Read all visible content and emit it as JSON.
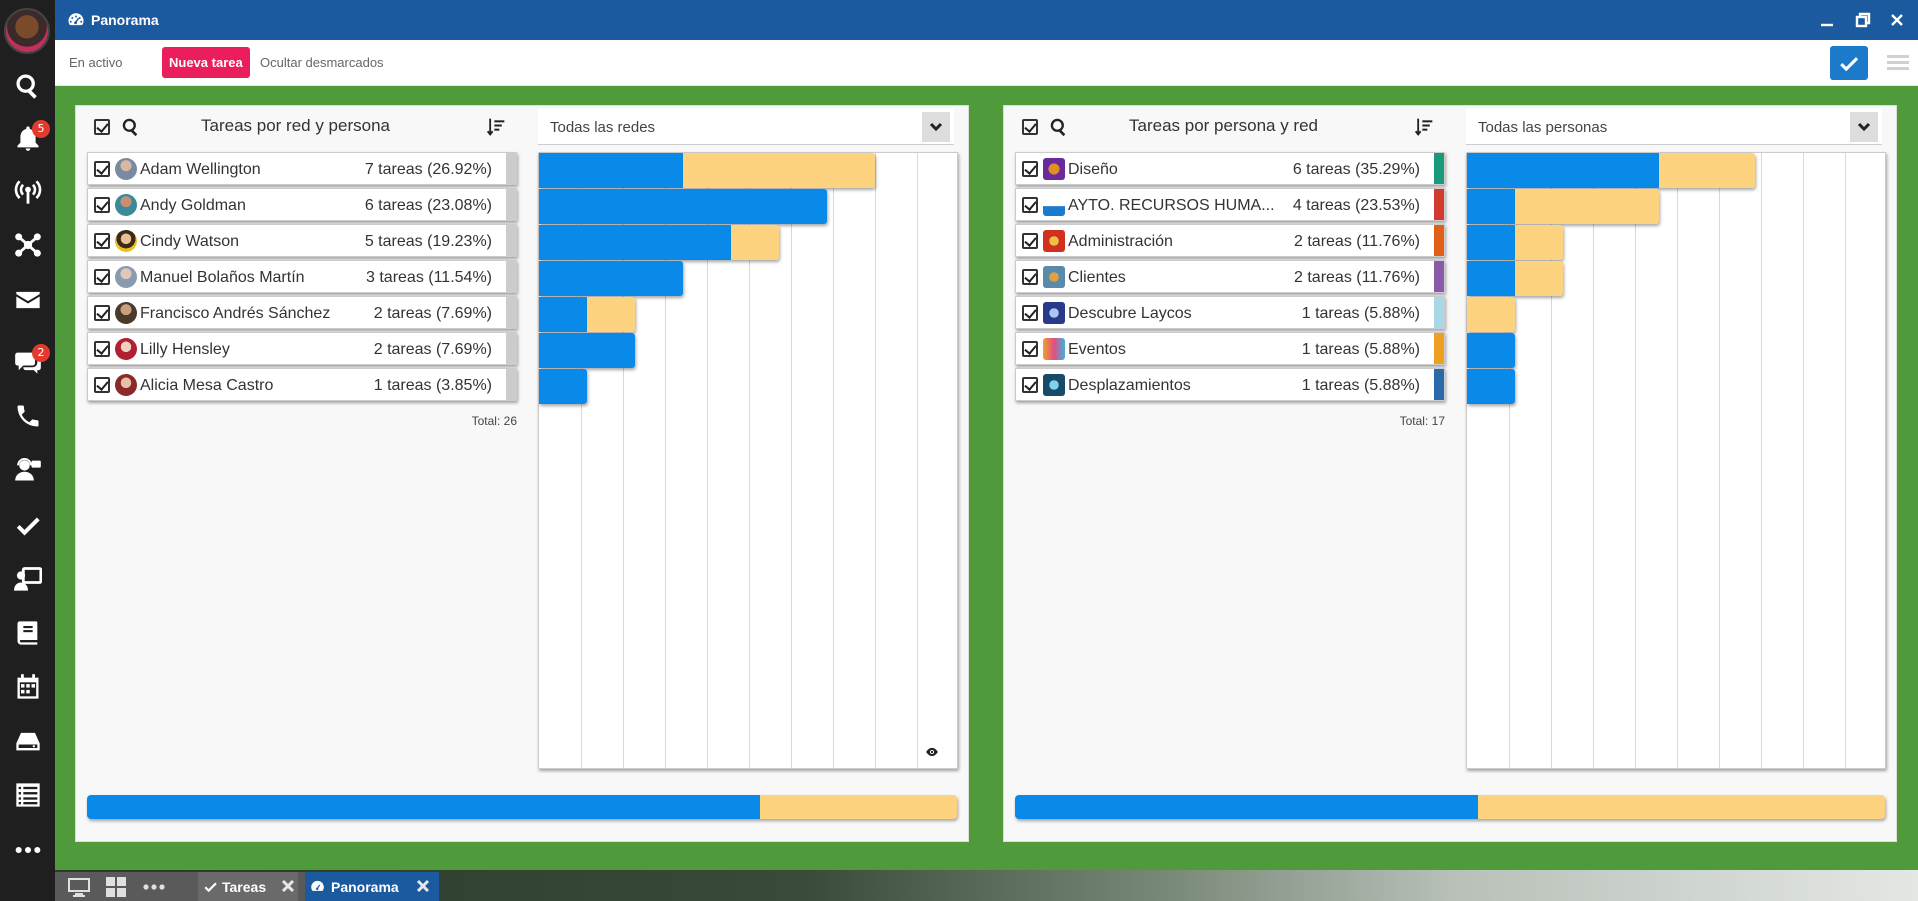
{
  "sidebar": {
    "badges": {
      "notifications": "5",
      "chat": "2"
    },
    "icons": [
      "search-icon",
      "bell-icon",
      "antenna-icon",
      "network-icon",
      "mail-icon",
      "chat-icon",
      "phone-icon",
      "support-icon",
      "check-icon",
      "presentation-icon",
      "book-icon",
      "calendar-icon",
      "drive-icon",
      "list-icon",
      "more-icon"
    ]
  },
  "window": {
    "title": "Panorama"
  },
  "toolbar": {
    "active_label": "En activo",
    "new_task_label": "Nueva tarea",
    "hide_label": "Ocultar desmarcados"
  },
  "colors": {
    "series_a": "#0a8ae8",
    "series_b": "#fdd380",
    "accent": "#ea1e5c",
    "titlebar": "#1c5aa0"
  },
  "left_panel": {
    "title": "Tareas por red y persona",
    "select_value": "Todas las redes",
    "total": "Total: 26",
    "rows": [
      {
        "name": "Adam Wellington",
        "count": "7 tareas (26.92%)",
        "a": 3,
        "b": 4
      },
      {
        "name": "Andy Goldman",
        "count": "6 tareas (23.08%)",
        "a": 6,
        "b": 0
      },
      {
        "name": "Cindy Watson",
        "count": "5 tareas (19.23%)",
        "a": 4,
        "b": 1
      },
      {
        "name": "Manuel Bolaños Martín",
        "count": "3 tareas (11.54%)",
        "a": 3,
        "b": 0
      },
      {
        "name": "Francisco Andrés Sánchez",
        "count": "2 tareas (7.69%)",
        "a": 1,
        "b": 1
      },
      {
        "name": "Lilly Hensley",
        "count": "2 tareas (7.69%)",
        "a": 2,
        "b": 0
      },
      {
        "name": "Alicia Mesa Castro",
        "count": "1 tareas (3.85%)",
        "a": 1,
        "b": 0
      }
    ],
    "progress": {
      "a": 0.774,
      "b": 0.226
    }
  },
  "right_panel": {
    "title": "Tareas por persona y red",
    "select_value": "Todas las personas",
    "total": "Total: 17",
    "rows": [
      {
        "name": "Diseño",
        "count": "6 tareas (35.29%)",
        "strip": "#1a9a7a",
        "a": 4,
        "b": 2
      },
      {
        "name": "AYTO. RECURSOS HUMA...",
        "count": "4 tareas (23.53%)",
        "strip": "#d23a30",
        "a": 1,
        "b": 3
      },
      {
        "name": "Administración",
        "count": "2 tareas (11.76%)",
        "strip": "#e0601a",
        "a": 1,
        "b": 1
      },
      {
        "name": "Clientes",
        "count": "2 tareas (11.76%)",
        "strip": "#8a5aa8",
        "a": 1,
        "b": 1
      },
      {
        "name": "Descubre Laycos",
        "count": "1 tareas (5.88%)",
        "strip": "#a8d8e8",
        "a": 0,
        "b": 1
      },
      {
        "name": "Eventos",
        "count": "1 tareas (5.88%)",
        "strip": "#f0a020",
        "a": 1,
        "b": 0
      },
      {
        "name": "Desplazamientos",
        "count": "1 tareas (5.88%)",
        "strip": "#2a6aaa",
        "a": 1,
        "b": 0
      }
    ],
    "progress": {
      "a": 0.532,
      "b": 0.468
    }
  },
  "taskbar": {
    "tabs": [
      {
        "label": "Tareas"
      },
      {
        "label": "Panorama"
      }
    ]
  }
}
